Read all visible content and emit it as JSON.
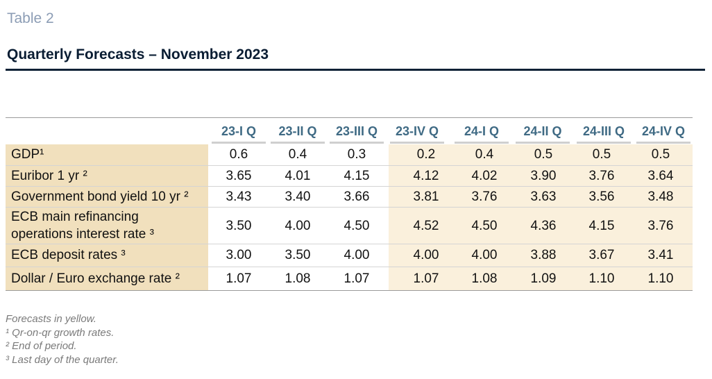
{
  "table": {
    "label": "Table 2",
    "title": "Quarterly Forecasts – November 2023",
    "columns": [
      "23-I Q",
      "23-II Q",
      "23-III Q",
      "23-IV Q",
      "24-I Q",
      "24-II Q",
      "24-III Q",
      "24-IV Q"
    ],
    "rows": [
      {
        "label": "GDP¹",
        "values": [
          "0.6",
          "0.4",
          "0.3",
          "0.2",
          "0.4",
          "0.5",
          "0.5",
          "0.5"
        ]
      },
      {
        "label": "Euribor 1 yr ²",
        "values": [
          "3.65",
          "4.01",
          "4.15",
          "4.12",
          "4.02",
          "3.90",
          "3.76",
          "3.64"
        ]
      },
      {
        "label": "Government bond yield 10 yr ²",
        "values": [
          "3.43",
          "3.40",
          "3.66",
          "3.81",
          "3.76",
          "3.63",
          "3.56",
          "3.48"
        ]
      },
      {
        "label_line1": "ECB main refinancing",
        "label_line2": "operations interest rate ³",
        "values": [
          "3.50",
          "4.00",
          "4.50",
          "4.52",
          "4.50",
          "4.36",
          "4.15",
          "3.76"
        ]
      },
      {
        "label": "ECB deposit rates ³",
        "values": [
          "3.00",
          "3.50",
          "4.00",
          "4.00",
          "4.00",
          "3.88",
          "3.67",
          "3.41"
        ]
      },
      {
        "label": "Dollar / Euro exchange rate ²",
        "values": [
          "1.07",
          "1.08",
          "1.07",
          "1.07",
          "1.08",
          "1.09",
          "1.10",
          "1.10"
        ]
      }
    ],
    "footnotes": [
      "Forecasts in yellow.",
      "¹ Qr-on-qr growth rates.",
      "² End of period.",
      "³ Last day of the quarter."
    ],
    "colors": {
      "label_muted": "#8c9db5",
      "title": "#0a1d33",
      "header_text": "#3f6a84",
      "row_label_bg": "#f1e0bd",
      "forecast_bg": "#faf0dc"
    }
  }
}
